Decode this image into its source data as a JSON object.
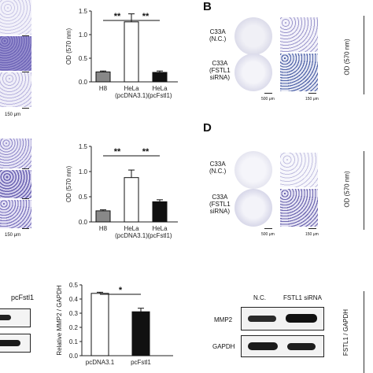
{
  "panels": {
    "b": "B",
    "d": "D"
  },
  "scalebars": {
    "top_left": "150 μm",
    "mid_left": "150 μm",
    "b_left": "500 μm",
    "b_right": "150 μm",
    "d_left": "500 μm",
    "d_right": "150 μm"
  },
  "panel_b": {
    "row1": "C33A\n(N.C.)",
    "row2": "C33A\n(FSTL1\nsiRNA)"
  },
  "panel_d": {
    "row1": "C33A\n(N.C.)",
    "row2": "C33A\n(FSTL1\nsiRNA)"
  },
  "right_ylabel": "OD (570 nm)",
  "right_bottom_ylabel": "FSTL1 / GAPDH",
  "blot_left": {
    "label": "pcFstl1"
  },
  "blot_right": {
    "headers": [
      "N.C.",
      "FSTL1 siRNA"
    ],
    "rows": [
      "MMP2",
      "GAPDH"
    ]
  },
  "chart_data": [
    {
      "type": "bar",
      "ylabel": "OD (570 nm)",
      "ylim": [
        0,
        1.5
      ],
      "yticks": [
        "0.0",
        "0.5",
        "1.0",
        "1.5"
      ],
      "categories": [
        "H8",
        "HeLa\n(pcDNA3.1)",
        "HeLa\n(pcFstl1)"
      ],
      "values": [
        0.21,
        1.27,
        0.2
      ],
      "errors": [
        0.02,
        0.17,
        0.03
      ],
      "fills": [
        "#888888",
        "#ffffff",
        "#111111"
      ],
      "significance": [
        {
          "from": 0,
          "to": 1,
          "text": "**"
        },
        {
          "from": 1,
          "to": 2,
          "text": "**"
        }
      ]
    },
    {
      "type": "bar",
      "ylabel": "OD (570 nm)",
      "ylim": [
        0,
        1.5
      ],
      "yticks": [
        "0.0",
        "0.5",
        "1.0",
        "1.5"
      ],
      "categories": [
        "H8",
        "HeLa\n(pcDNA3.1)",
        "HeLa\n(pcFstl1)"
      ],
      "values": [
        0.22,
        0.88,
        0.4
      ],
      "errors": [
        0.02,
        0.15,
        0.04
      ],
      "fills": [
        "#888888",
        "#ffffff",
        "#111111"
      ],
      "significance": [
        {
          "from": 0,
          "to": 1,
          "text": "**"
        },
        {
          "from": 1,
          "to": 2,
          "text": "**"
        }
      ]
    },
    {
      "type": "bar",
      "ylabel": "Relative MMP2 / GAPDH",
      "ylim": [
        0,
        0.5
      ],
      "yticks": [
        "0.0",
        "0.1",
        "0.2",
        "0.3",
        "0.4",
        "0.5"
      ],
      "categories": [
        "pcDNA3.1",
        "pcFstl1"
      ],
      "values": [
        0.44,
        0.31
      ],
      "errors": [
        0.008,
        0.025
      ],
      "fills": [
        "#ffffff",
        "#111111"
      ],
      "significance": [
        {
          "from": 0,
          "to": 1,
          "text": "*"
        }
      ]
    }
  ]
}
